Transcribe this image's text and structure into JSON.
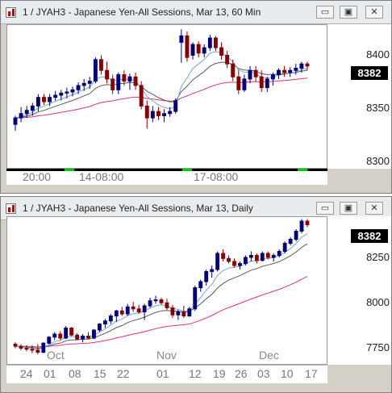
{
  "colors": {
    "up": "#000080",
    "down": "#8b0000",
    "ma_fast": "#6fa8dc",
    "ma_mid": "#5a5a5a",
    "ma_slow": "#e0307a",
    "session": "#00cc00"
  },
  "window_buttons": {
    "minimize": "▭",
    "restore": "▣",
    "close": "✕"
  },
  "chart1": {
    "title": "1 / JYAH3 - Japanese Yen-All Sessions, Mar 13, 60 Min",
    "y_labels": [
      "8400",
      "8350",
      "8300"
    ],
    "last_price": "8382",
    "time_labels": [
      "20:00",
      "14-08:00",
      "17-08:00"
    ],
    "chart_data": {
      "type": "candlestick",
      "interval": "60 Min",
      "ylim": [
        8290,
        8420
      ],
      "candles": [
        {
          "o": 8328,
          "h": 8336,
          "l": 8322,
          "c": 8334
        },
        {
          "o": 8334,
          "h": 8344,
          "l": 8330,
          "c": 8338
        },
        {
          "o": 8338,
          "h": 8345,
          "l": 8334,
          "c": 8341
        },
        {
          "o": 8341,
          "h": 8348,
          "l": 8336,
          "c": 8345
        },
        {
          "o": 8345,
          "h": 8356,
          "l": 8340,
          "c": 8353
        },
        {
          "o": 8353,
          "h": 8356,
          "l": 8346,
          "c": 8349
        },
        {
          "o": 8349,
          "h": 8356,
          "l": 8345,
          "c": 8353
        },
        {
          "o": 8353,
          "h": 8359,
          "l": 8350,
          "c": 8355
        },
        {
          "o": 8355,
          "h": 8360,
          "l": 8350,
          "c": 8357
        },
        {
          "o": 8357,
          "h": 8362,
          "l": 8352,
          "c": 8358
        },
        {
          "o": 8358,
          "h": 8363,
          "l": 8354,
          "c": 8360
        },
        {
          "o": 8360,
          "h": 8367,
          "l": 8356,
          "c": 8364
        },
        {
          "o": 8364,
          "h": 8370,
          "l": 8359,
          "c": 8366
        },
        {
          "o": 8366,
          "h": 8372,
          "l": 8361,
          "c": 8368
        },
        {
          "o": 8368,
          "h": 8390,
          "l": 8366,
          "c": 8388
        },
        {
          "o": 8388,
          "h": 8392,
          "l": 8374,
          "c": 8378
        },
        {
          "o": 8378,
          "h": 8386,
          "l": 8366,
          "c": 8370
        },
        {
          "o": 8370,
          "h": 8374,
          "l": 8356,
          "c": 8360
        },
        {
          "o": 8360,
          "h": 8376,
          "l": 8356,
          "c": 8374
        },
        {
          "o": 8374,
          "h": 8378,
          "l": 8364,
          "c": 8368
        },
        {
          "o": 8368,
          "h": 8375,
          "l": 8360,
          "c": 8372
        },
        {
          "o": 8372,
          "h": 8376,
          "l": 8360,
          "c": 8364
        },
        {
          "o": 8364,
          "h": 8368,
          "l": 8342,
          "c": 8345
        },
        {
          "o": 8345,
          "h": 8350,
          "l": 8324,
          "c": 8334
        },
        {
          "o": 8334,
          "h": 8345,
          "l": 8330,
          "c": 8340
        },
        {
          "o": 8340,
          "h": 8344,
          "l": 8332,
          "c": 8336
        },
        {
          "o": 8336,
          "h": 8342,
          "l": 8330,
          "c": 8338
        },
        {
          "o": 8338,
          "h": 8344,
          "l": 8335,
          "c": 8340
        },
        {
          "o": 8340,
          "h": 8352,
          "l": 8338,
          "c": 8350
        },
        {
          "o": 8404,
          "h": 8416,
          "l": 8385,
          "c": 8410
        },
        {
          "o": 8410,
          "h": 8414,
          "l": 8386,
          "c": 8390
        },
        {
          "o": 8392,
          "h": 8404,
          "l": 8388,
          "c": 8402
        },
        {
          "o": 8402,
          "h": 8405,
          "l": 8390,
          "c": 8394
        },
        {
          "o": 8394,
          "h": 8402,
          "l": 8390,
          "c": 8399
        },
        {
          "o": 8399,
          "h": 8411,
          "l": 8396,
          "c": 8408
        },
        {
          "o": 8408,
          "h": 8410,
          "l": 8396,
          "c": 8399
        },
        {
          "o": 8399,
          "h": 8404,
          "l": 8388,
          "c": 8392
        },
        {
          "o": 8392,
          "h": 8396,
          "l": 8380,
          "c": 8384
        },
        {
          "o": 8384,
          "h": 8388,
          "l": 8368,
          "c": 8372
        },
        {
          "o": 8372,
          "h": 8378,
          "l": 8356,
          "c": 8360
        },
        {
          "o": 8360,
          "h": 8374,
          "l": 8358,
          "c": 8370
        },
        {
          "o": 8370,
          "h": 8382,
          "l": 8366,
          "c": 8378
        },
        {
          "o": 8378,
          "h": 8382,
          "l": 8368,
          "c": 8372
        },
        {
          "o": 8372,
          "h": 8378,
          "l": 8358,
          "c": 8362
        },
        {
          "o": 8362,
          "h": 8372,
          "l": 8358,
          "c": 8370
        },
        {
          "o": 8370,
          "h": 8376,
          "l": 8364,
          "c": 8374
        },
        {
          "o": 8374,
          "h": 8380,
          "l": 8370,
          "c": 8378
        },
        {
          "o": 8378,
          "h": 8382,
          "l": 8372,
          "c": 8376
        },
        {
          "o": 8376,
          "h": 8381,
          "l": 8372,
          "c": 8378
        },
        {
          "o": 8378,
          "h": 8384,
          "l": 8374,
          "c": 8380
        },
        {
          "o": 8380,
          "h": 8386,
          "l": 8376,
          "c": 8384
        },
        {
          "o": 8384,
          "h": 8386,
          "l": 8378,
          "c": 8382
        }
      ]
    }
  },
  "chart2": {
    "title": "1 / JYAH3 - Japanese Yen-All Sessions, Mar 13, Daily",
    "y_labels": [
      "8250",
      "8000",
      "7750"
    ],
    "last_price": "8382",
    "date_labels": [
      "24",
      "01",
      "08",
      "15",
      "22",
      "01",
      "12",
      "19",
      "26",
      "03",
      "10",
      "17"
    ],
    "month_labels": [
      "Oct",
      "Nov",
      "Dec"
    ],
    "chart_data": {
      "type": "candlestick",
      "interval": "Daily",
      "ylim": [
        7700,
        8420
      ],
      "candles": [
        {
          "o": 7790,
          "h": 7800,
          "l": 7770,
          "c": 7780
        },
        {
          "o": 7780,
          "h": 7790,
          "l": 7760,
          "c": 7770
        },
        {
          "o": 7770,
          "h": 7785,
          "l": 7755,
          "c": 7765
        },
        {
          "o": 7765,
          "h": 7785,
          "l": 7745,
          "c": 7760
        },
        {
          "o": 7760,
          "h": 7790,
          "l": 7740,
          "c": 7750
        },
        {
          "o": 7750,
          "h": 7800,
          "l": 7745,
          "c": 7795
        },
        {
          "o": 7795,
          "h": 7830,
          "l": 7790,
          "c": 7825
        },
        {
          "o": 7825,
          "h": 7850,
          "l": 7810,
          "c": 7840
        },
        {
          "o": 7840,
          "h": 7855,
          "l": 7810,
          "c": 7820
        },
        {
          "o": 7820,
          "h": 7880,
          "l": 7815,
          "c": 7870
        },
        {
          "o": 7870,
          "h": 7875,
          "l": 7830,
          "c": 7835
        },
        {
          "o": 7835,
          "h": 7845,
          "l": 7810,
          "c": 7815
        },
        {
          "o": 7815,
          "h": 7840,
          "l": 7800,
          "c": 7830
        },
        {
          "o": 7830,
          "h": 7850,
          "l": 7815,
          "c": 7820
        },
        {
          "o": 7820,
          "h": 7865,
          "l": 7815,
          "c": 7860
        },
        {
          "o": 7860,
          "h": 7895,
          "l": 7850,
          "c": 7890
        },
        {
          "o": 7890,
          "h": 7915,
          "l": 7870,
          "c": 7905
        },
        {
          "o": 7905,
          "h": 7940,
          "l": 7890,
          "c": 7930
        },
        {
          "o": 7930,
          "h": 7960,
          "l": 7900,
          "c": 7955
        },
        {
          "o": 7955,
          "h": 7975,
          "l": 7930,
          "c": 7940
        },
        {
          "o": 7940,
          "h": 7990,
          "l": 7930,
          "c": 7975
        },
        {
          "o": 7975,
          "h": 8000,
          "l": 7950,
          "c": 7965
        },
        {
          "o": 7965,
          "h": 7985,
          "l": 7940,
          "c": 7950
        },
        {
          "o": 7950,
          "h": 7990,
          "l": 7910,
          "c": 7980
        },
        {
          "o": 7980,
          "h": 8020,
          "l": 7970,
          "c": 8005
        },
        {
          "o": 8005,
          "h": 8030,
          "l": 7990,
          "c": 8010
        },
        {
          "o": 8010,
          "h": 8020,
          "l": 7985,
          "c": 7995
        },
        {
          "o": 7995,
          "h": 8015,
          "l": 7960,
          "c": 7970
        },
        {
          "o": 7970,
          "h": 7985,
          "l": 7920,
          "c": 7935
        },
        {
          "o": 7935,
          "h": 7960,
          "l": 7910,
          "c": 7950
        },
        {
          "o": 7950,
          "h": 7980,
          "l": 7920,
          "c": 7930
        },
        {
          "o": 7930,
          "h": 7975,
          "l": 7925,
          "c": 7965
        },
        {
          "o": 7965,
          "h": 8080,
          "l": 7955,
          "c": 8070
        },
        {
          "o": 8070,
          "h": 8110,
          "l": 8050,
          "c": 8100
        },
        {
          "o": 8100,
          "h": 8160,
          "l": 8080,
          "c": 8150
        },
        {
          "o": 8150,
          "h": 8180,
          "l": 8120,
          "c": 8160
        },
        {
          "o": 8160,
          "h": 8250,
          "l": 8150,
          "c": 8240
        },
        {
          "o": 8240,
          "h": 8260,
          "l": 8200,
          "c": 8215
        },
        {
          "o": 8215,
          "h": 8230,
          "l": 8190,
          "c": 8200
        },
        {
          "o": 8200,
          "h": 8215,
          "l": 8170,
          "c": 8180
        },
        {
          "o": 8180,
          "h": 8200,
          "l": 8160,
          "c": 8190
        },
        {
          "o": 8190,
          "h": 8230,
          "l": 8180,
          "c": 8220
        },
        {
          "o": 8220,
          "h": 8250,
          "l": 8200,
          "c": 8230
        },
        {
          "o": 8230,
          "h": 8240,
          "l": 8190,
          "c": 8205
        },
        {
          "o": 8205,
          "h": 8250,
          "l": 8200,
          "c": 8240
        },
        {
          "o": 8240,
          "h": 8250,
          "l": 8210,
          "c": 8220
        },
        {
          "o": 8220,
          "h": 8240,
          "l": 8200,
          "c": 8230
        },
        {
          "o": 8230,
          "h": 8260,
          "l": 8220,
          "c": 8250
        },
        {
          "o": 8250,
          "h": 8300,
          "l": 8240,
          "c": 8290
        },
        {
          "o": 8290,
          "h": 8320,
          "l": 8280,
          "c": 8310
        },
        {
          "o": 8310,
          "h": 8360,
          "l": 8300,
          "c": 8350
        },
        {
          "o": 8350,
          "h": 8410,
          "l": 8340,
          "c": 8400
        },
        {
          "o": 8400,
          "h": 8410,
          "l": 8370,
          "c": 8382
        }
      ]
    }
  }
}
